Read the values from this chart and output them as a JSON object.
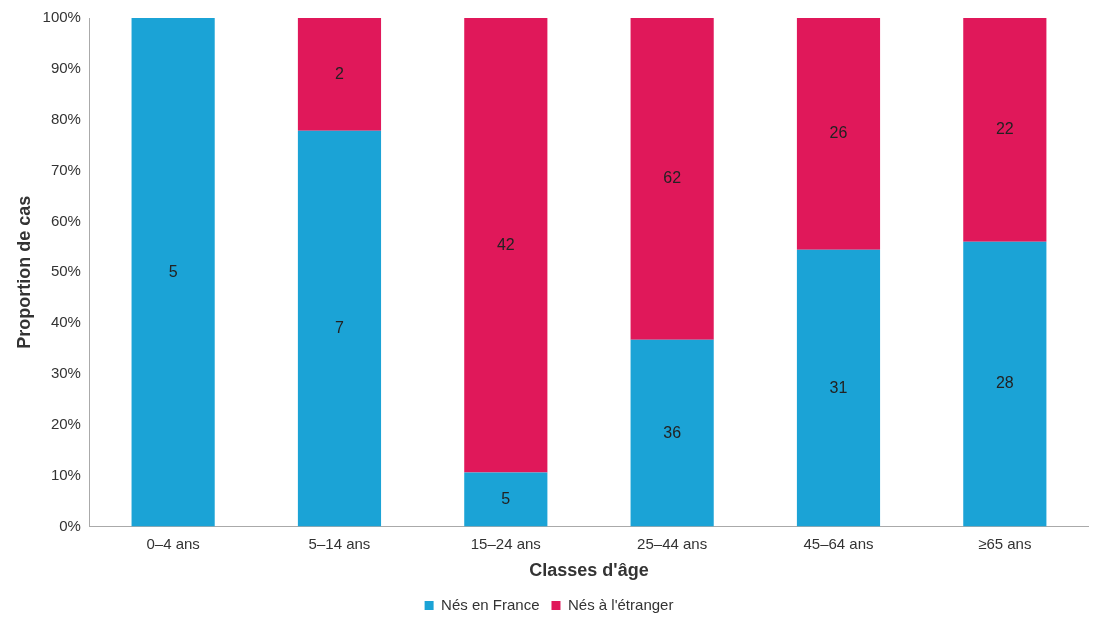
{
  "chart_data": {
    "type": "bar",
    "stacked": true,
    "xlabel": "Classes d'âge",
    "ylabel": "Proportion de cas",
    "categories": [
      "0–4 ans",
      "5–14 ans",
      "15–24 ans",
      "25–44 ans",
      "45–64 ans",
      "≥65 ans"
    ],
    "series": [
      {
        "name": "Nés en France",
        "color": "#1ba3d6",
        "values": [
          100,
          77.8,
          10.6,
          36.7,
          54.4,
          56
        ]
      },
      {
        "name": "Nés à l'étranger",
        "color": "#e0185a",
        "values": [
          0,
          22.2,
          89.4,
          63.3,
          45.6,
          44
        ]
      }
    ],
    "annotations": [
      "5",
      "7",
      "2",
      "5",
      "42",
      "36",
      "62",
      "31",
      "26",
      "28",
      "22"
    ],
    "ylim": [
      0,
      100
    ],
    "yticks": [
      {
        "value": 0,
        "label": "0%"
      },
      {
        "value": 10,
        "label": "10%"
      },
      {
        "value": 20,
        "label": "20%"
      },
      {
        "value": 30,
        "label": "30%"
      },
      {
        "value": 40,
        "label": "40%"
      },
      {
        "value": 50,
        "label": "50%"
      },
      {
        "value": 60,
        "label": "60%"
      },
      {
        "value": 70,
        "label": "70%"
      },
      {
        "value": 80,
        "label": "80%"
      },
      {
        "value": 90,
        "label": "90%"
      },
      {
        "value": 100,
        "label": "100%"
      }
    ],
    "legend": "bottom"
  }
}
